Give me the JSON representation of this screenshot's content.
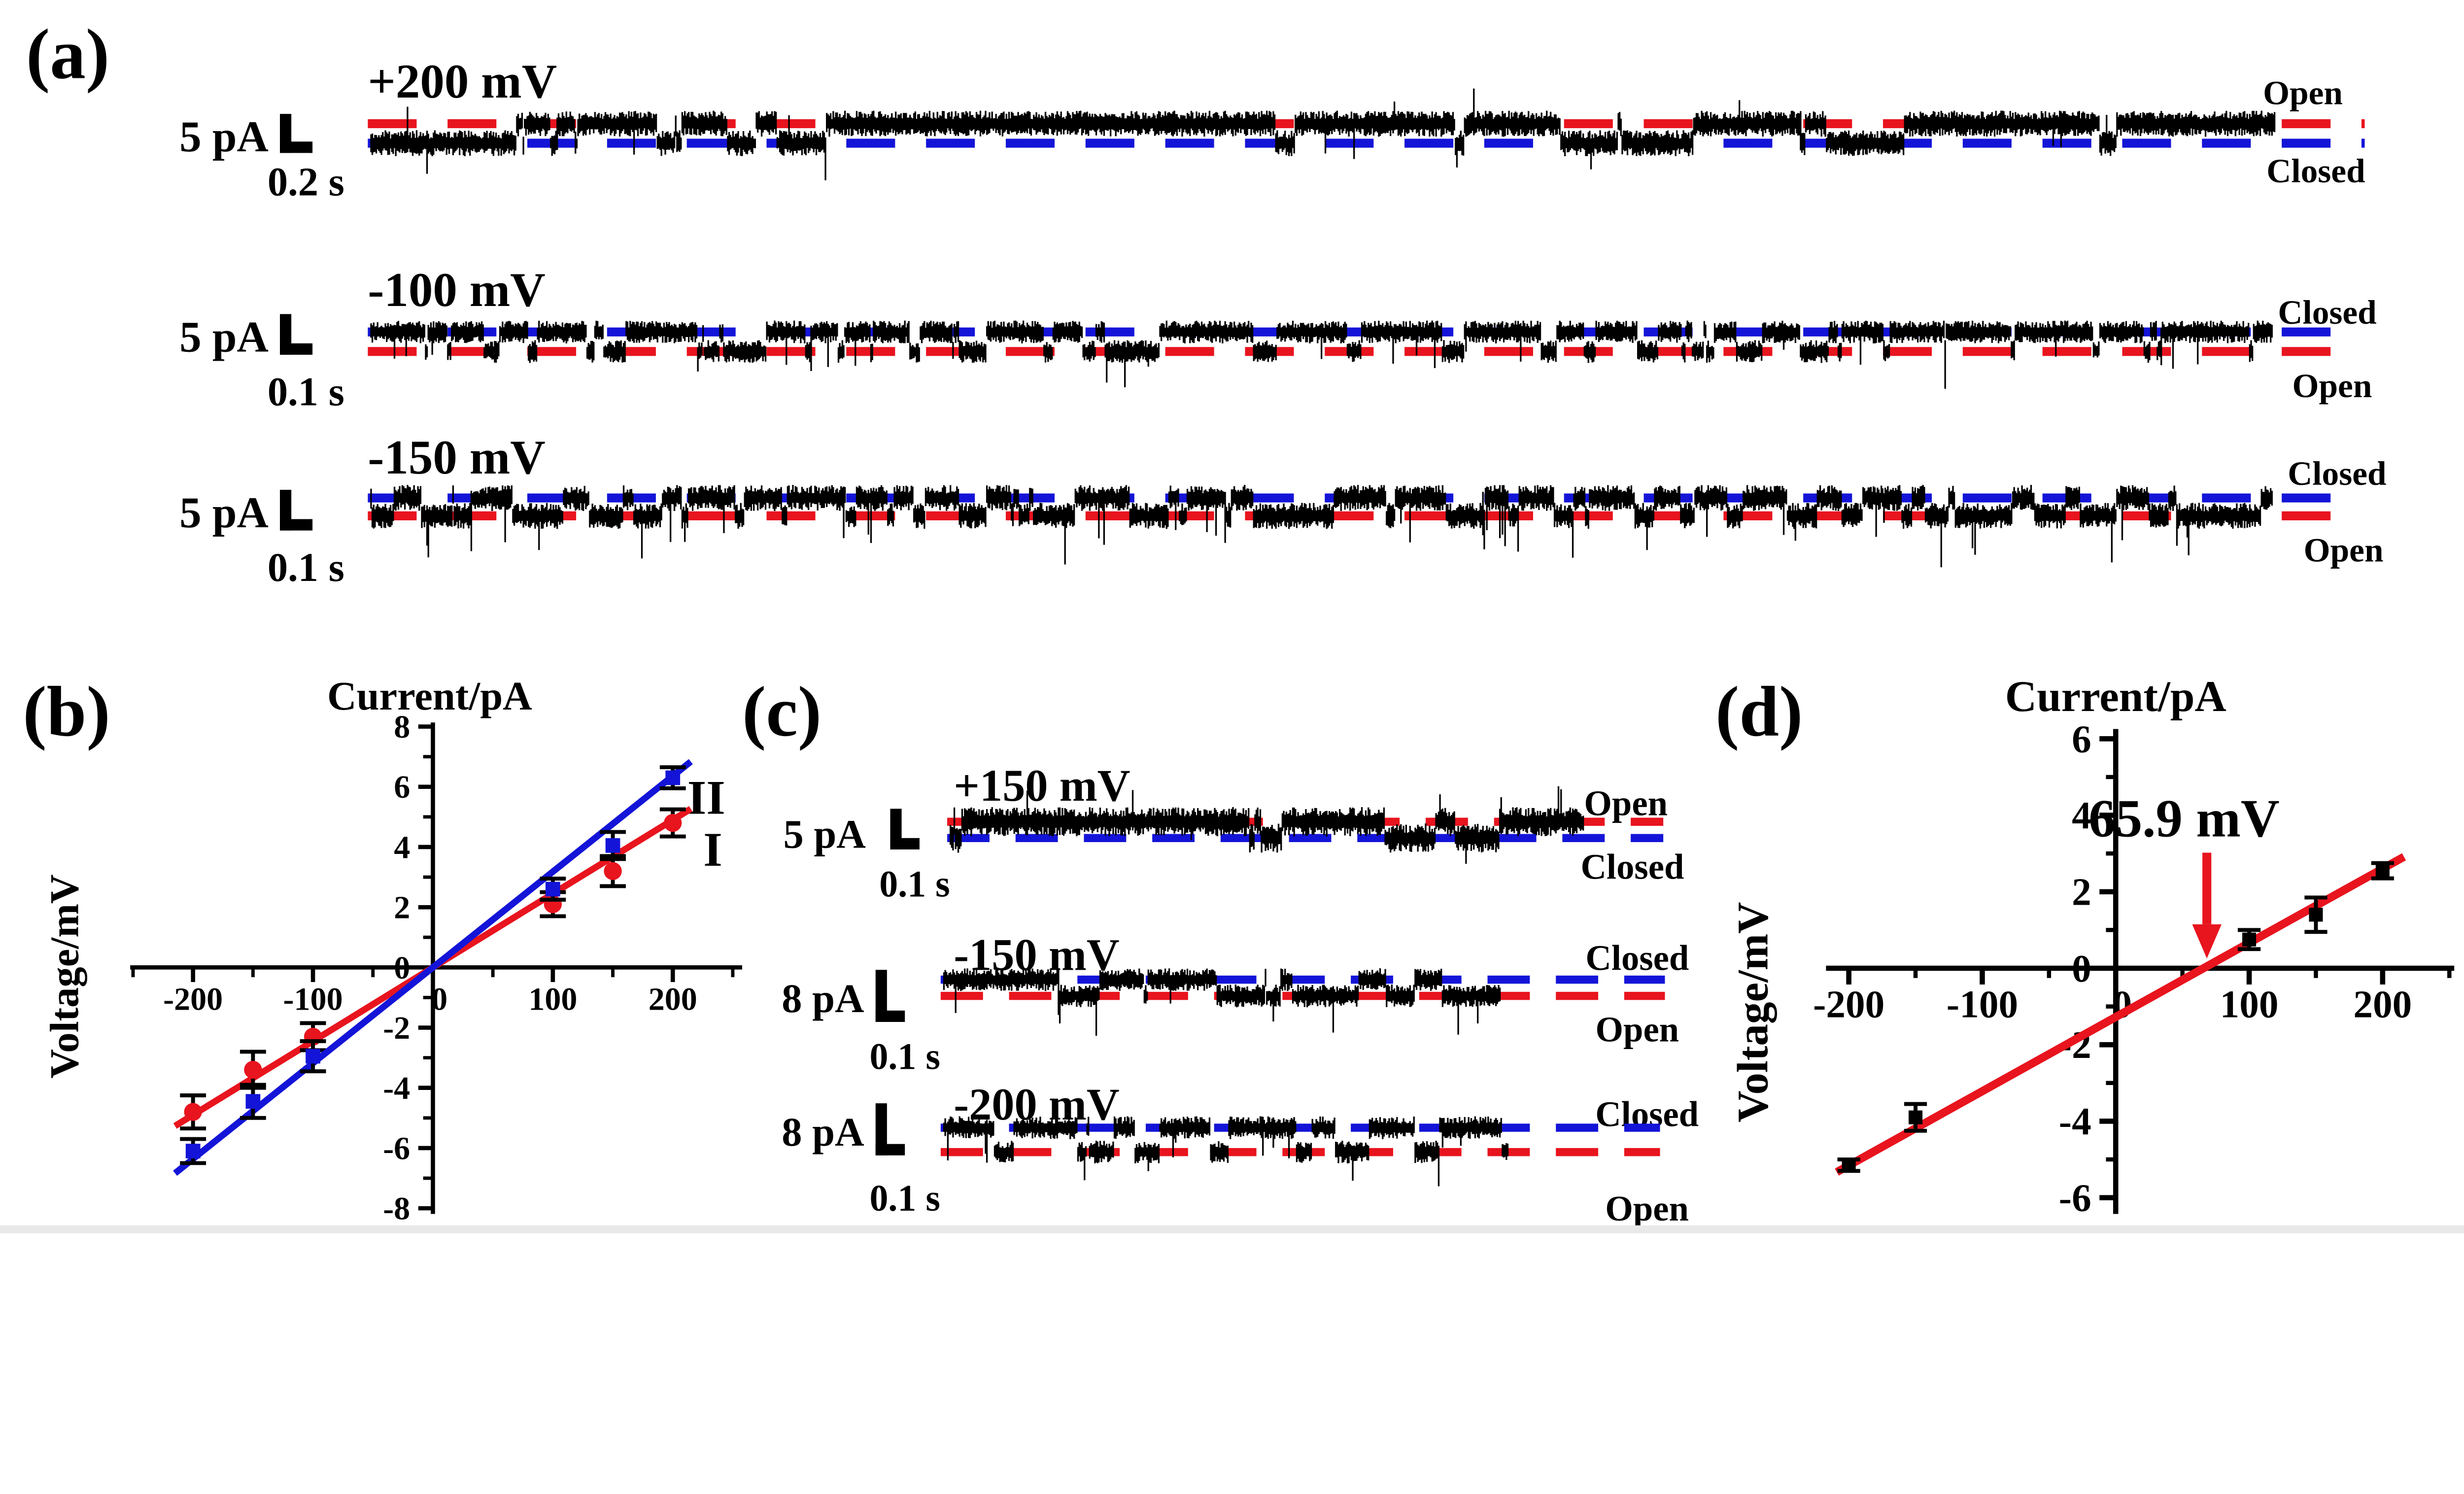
{
  "colors": {
    "red": "#e8141e",
    "blue": "#1414d8",
    "black": "#000000",
    "bottom_strip": "#e9e9e9"
  },
  "panels": {
    "a": {
      "label": "(a)",
      "traces": [
        {
          "voltage": "+200 mV",
          "current_scale": "5 pA",
          "time_scale": "0.2 s",
          "upper_label": "Open",
          "upper_color": "red",
          "lower_label": "Closed",
          "lower_color": "blue"
        },
        {
          "voltage": "-100 mV",
          "current_scale": "5 pA",
          "time_scale": "0.1 s",
          "upper_label": "Closed",
          "upper_color": "blue",
          "lower_label": "Open",
          "lower_color": "red"
        },
        {
          "voltage": "-150 mV",
          "current_scale": "5 pA",
          "time_scale": "0.1 s",
          "upper_label": "Closed",
          "upper_color": "blue",
          "lower_label": "Open",
          "lower_color": "red"
        }
      ]
    },
    "b": {
      "label": "(b)",
      "y_axis_title": "Current/pA",
      "x_axis_title": "Voltage/mV",
      "legend": [
        {
          "name": "II",
          "color": "blue"
        },
        {
          "name": "I",
          "color": "red"
        }
      ]
    },
    "c": {
      "label": "(c)",
      "traces": [
        {
          "voltage": "+150 mV",
          "current_scale": "5 pA",
          "time_scale": "0.1 s",
          "upper_label": "Open",
          "upper_color": "red",
          "lower_label": "Closed",
          "lower_color": "blue"
        },
        {
          "voltage": "-150 mV",
          "current_scale": "8 pA",
          "time_scale": "0.1 s",
          "upper_label": "Closed",
          "upper_color": "blue",
          "lower_label": "Open",
          "lower_color": "red"
        },
        {
          "voltage": "-200 mV",
          "current_scale": "8 pA",
          "time_scale": "0.1 s",
          "upper_label": "Closed",
          "upper_color": "blue",
          "lower_label": "Open",
          "lower_color": "red"
        }
      ]
    },
    "d": {
      "label": "(d)",
      "y_axis_title": "Current/pA",
      "x_axis_title": "Voltage/mV",
      "annotation": "65.9 mV"
    }
  },
  "chart_data": [
    {
      "id": "b",
      "type": "scatter",
      "title": "",
      "xlabel": "Voltage/mV",
      "ylabel": "Current/pA",
      "x": [
        -200,
        -150,
        -100,
        100,
        150,
        200
      ],
      "series": [
        {
          "name": "I",
          "marker": "circle",
          "color": "red",
          "values": [
            -4.8,
            -3.4,
            -2.3,
            2.1,
            3.2,
            4.8
          ],
          "errors": [
            0.55,
            0.6,
            0.45,
            0.4,
            0.5,
            0.45
          ],
          "fit": {
            "slope_pA_per_mV": 0.0245,
            "intercept_pA": 0,
            "range_mV": [
              -215,
              215
            ]
          }
        },
        {
          "name": "II",
          "marker": "square",
          "color": "blue",
          "values": [
            -6.1,
            -4.45,
            -2.95,
            2.6,
            4.05,
            6.3
          ],
          "errors": [
            0.4,
            0.55,
            0.5,
            0.35,
            0.45,
            0.35
          ],
          "fit": {
            "slope_pA_per_mV": 0.0318,
            "intercept_pA": 0,
            "range_mV": [
              -215,
              215
            ]
          }
        }
      ],
      "xlim": [
        -255,
        255
      ],
      "ylim": [
        -8.3,
        8.3
      ],
      "x_ticks": [
        -200,
        -100,
        0,
        100,
        200
      ],
      "x_minor_ticks": [
        -250,
        -150,
        -50,
        50,
        150,
        250
      ],
      "y_ticks": [
        8,
        6,
        4,
        2,
        0,
        -2,
        -4,
        -6,
        -8
      ],
      "y_minor_ticks": [
        7,
        5,
        3,
        1,
        -1,
        -3,
        -5,
        -7
      ],
      "grid": false,
      "legend_position": "upper right"
    },
    {
      "id": "d",
      "type": "scatter",
      "title": "",
      "xlabel": "Voltage/mV",
      "ylabel": "Current/pA",
      "x": [
        -200,
        -150,
        100,
        150,
        200
      ],
      "series": [
        {
          "name": "",
          "marker": "square",
          "color": "black",
          "values": [
            -5.15,
            -3.9,
            0.75,
            1.4,
            2.55
          ],
          "errors": [
            0.15,
            0.35,
            0.25,
            0.45,
            0.2
          ],
          "fit": {
            "slope_pA_per_mV": 0.0194,
            "intercept_pA": -1.276,
            "x_intercept_mV": 65.9,
            "range_mV": [
              -209,
              216
            ],
            "color": "red"
          }
        }
      ],
      "annotation": "65.9 mV",
      "xlim": [
        -230,
        252
      ],
      "ylim": [
        -6.5,
        6.6
      ],
      "x_ticks": [
        -200,
        -100,
        0,
        100,
        200
      ],
      "x_minor_ticks": [
        -150,
        -50,
        50,
        150,
        250
      ],
      "y_ticks": [
        6,
        4,
        2,
        0,
        -2,
        -4,
        -6
      ],
      "y_minor_ticks": [
        5,
        3,
        1,
        -1,
        -3,
        -5
      ],
      "grid": false
    }
  ]
}
